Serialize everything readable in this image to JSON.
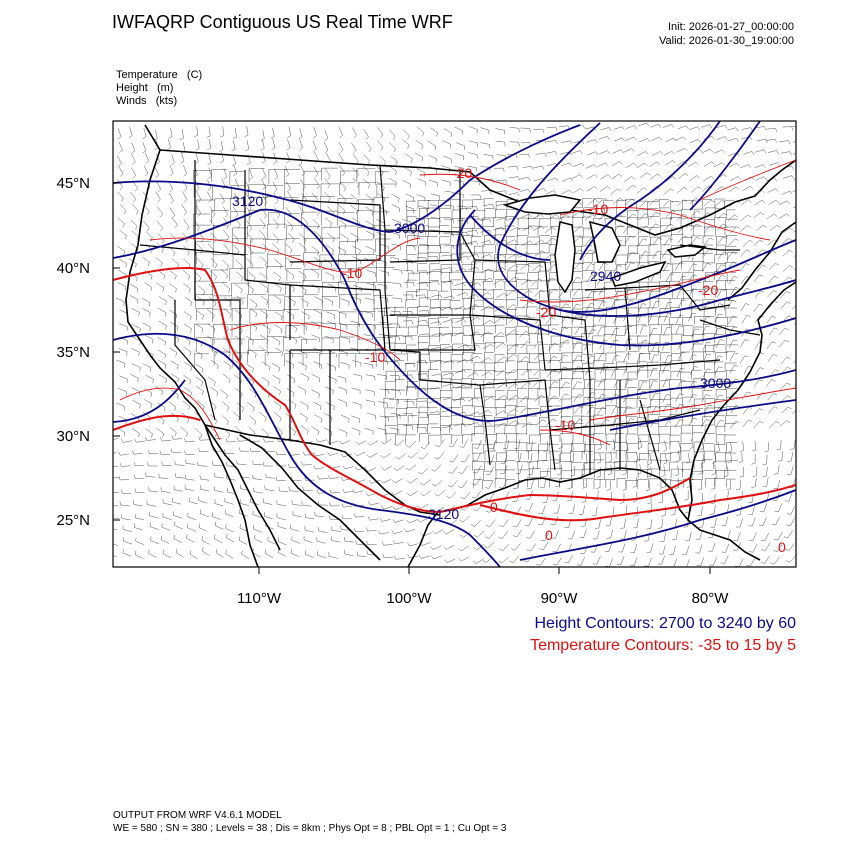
{
  "header": {
    "title": "IWFAQRP Contiguous US Real Time WRF",
    "init": "Init: 2026-01-27_00:00:00",
    "valid": "Valid: 2026-01-30_19:00:00"
  },
  "fields": [
    "Temperature   (C)",
    "Height   (m)",
    "Winds   (kts)"
  ],
  "axes": {
    "lat_labels": [
      "45°N",
      "40°N",
      "35°N",
      "30°N",
      "25°N"
    ],
    "lon_labels": [
      "110°W",
      "100°W",
      "90°W",
      "80°W"
    ]
  },
  "contour_labels": {
    "height": [
      "3120",
      "3000",
      "2940",
      "3000",
      "3120"
    ],
    "temperature": [
      "-20",
      "-10",
      "-20",
      "-10",
      "-10",
      "-20",
      "0",
      "-10",
      "0",
      "0"
    ]
  },
  "legend": {
    "height": "Height Contours: 2700 to 3240 by 60",
    "temperature": "Temperature Contours: -35 to 15 by 5"
  },
  "footer": {
    "line1": "OUTPUT FROM WRF V4.6.1 MODEL",
    "line2": "WE = 580 ; SN = 380 ; Levels = 38 ; Dis = 8km ; Phys Opt = 8 ; PBL Opt = 1 ; Cu Opt = 3"
  },
  "colors": {
    "height_contour": "#0a0a88",
    "temperature_contour": "#e01010",
    "borders": "#000000"
  }
}
